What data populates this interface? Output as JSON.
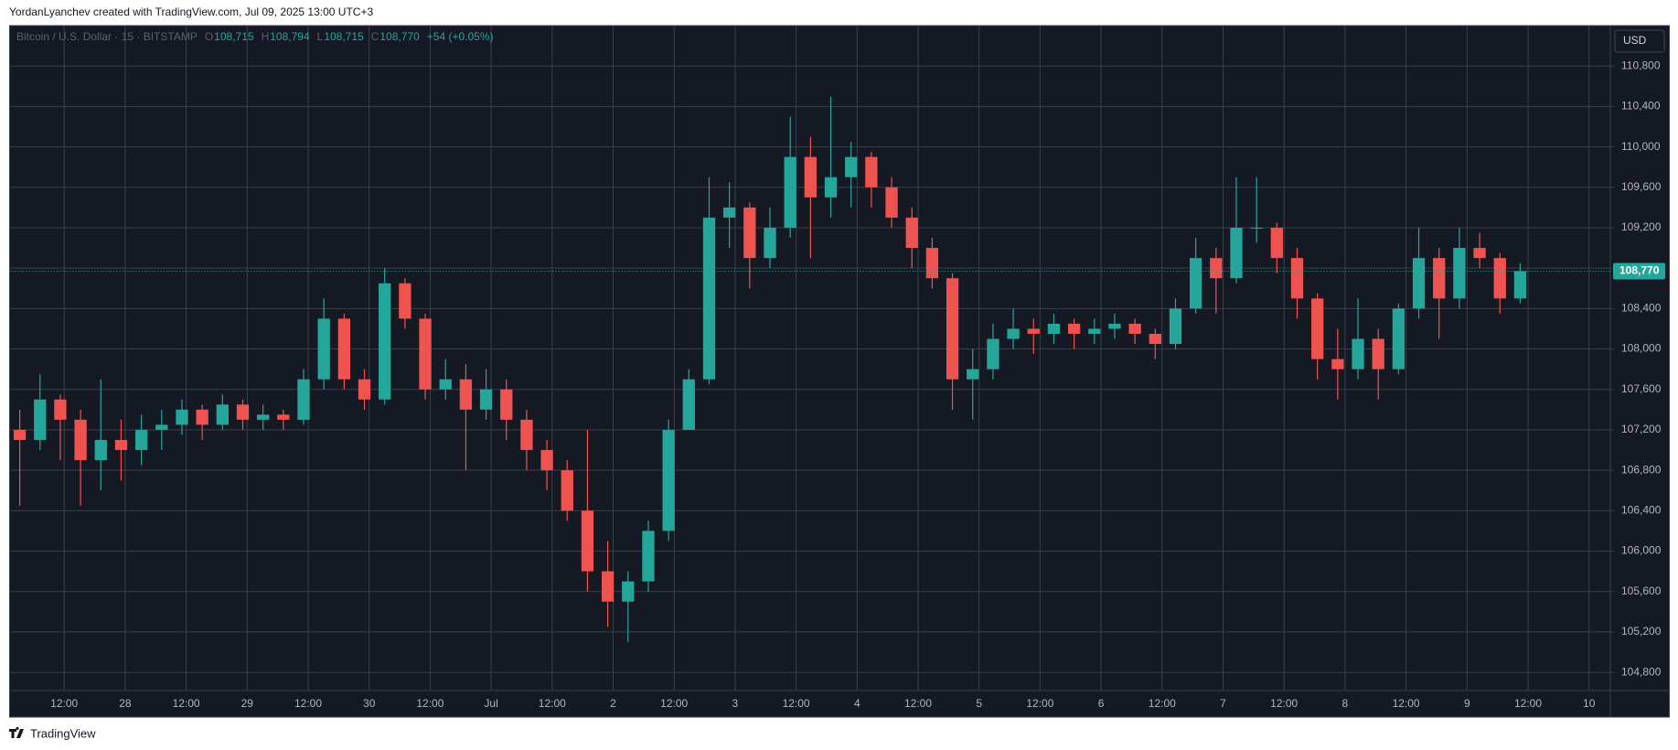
{
  "chart_data": {
    "type": "candlestick",
    "header": "YordanLyanchev created with TradingView.com, Jul 09, 2025 13:00 UTC+3",
    "legend": {
      "symbol": "Bitcoin / U.S. Dollar · 15 · BITSTAMP",
      "ohlc": [
        {
          "key": "O",
          "value": "108,715"
        },
        {
          "key": "H",
          "value": "108,794"
        },
        {
          "key": "L",
          "value": "108,715"
        },
        {
          "key": "C",
          "value": "108,770"
        }
      ],
      "change": "+54 (+0.05%)"
    },
    "currency": "USD",
    "footer": "TradingView",
    "up_color": "#26a69a",
    "down_color": "#ef5350",
    "ylim": [
      104620,
      111200
    ],
    "yticks": [
      {
        "value": 104800,
        "label": "104,800"
      },
      {
        "value": 105200,
        "label": "105,200"
      },
      {
        "value": 105600,
        "label": "105,600"
      },
      {
        "value": 106000,
        "label": "106,000"
      },
      {
        "value": 106400,
        "label": "106,400"
      },
      {
        "value": 106800,
        "label": "106,800"
      },
      {
        "value": 107200,
        "label": "107,200"
      },
      {
        "value": 107600,
        "label": "107,600"
      },
      {
        "value": 108000,
        "label": "108,000"
      },
      {
        "value": 108400,
        "label": "108,400"
      },
      {
        "value": 108800,
        "label": "108,800"
      },
      {
        "value": 109200,
        "label": "109,200"
      },
      {
        "value": 109600,
        "label": "109,600"
      },
      {
        "value": 110000,
        "label": "110,000"
      },
      {
        "value": 110400,
        "label": "110,400"
      },
      {
        "value": 110800,
        "label": "110,800"
      }
    ],
    "xticks": [
      "12:00",
      "28",
      "12:00",
      "29",
      "12:00",
      "30",
      "12:00",
      "Jul",
      "12:00",
      "2",
      "12:00",
      "3",
      "12:00",
      "4",
      "12:00",
      "5",
      "12:00",
      "6",
      "12:00",
      "7",
      "12:00",
      "8",
      "12:00",
      "9",
      "12:00",
      "10"
    ],
    "last_price": {
      "value": 108770,
      "label": "108,770"
    },
    "candles": [
      [
        107200,
        107400,
        106450,
        107100
      ],
      [
        107100,
        107750,
        107000,
        107500
      ],
      [
        107500,
        107550,
        106900,
        107300
      ],
      [
        107300,
        107400,
        106450,
        106900
      ],
      [
        106900,
        107700,
        106600,
        107100
      ],
      [
        107100,
        107300,
        106700,
        107000
      ],
      [
        107000,
        107350,
        106850,
        107200
      ],
      [
        107200,
        107400,
        107000,
        107250
      ],
      [
        107250,
        107500,
        107150,
        107400
      ],
      [
        107400,
        107450,
        107100,
        107250
      ],
      [
        107250,
        107550,
        107200,
        107450
      ],
      [
        107450,
        107500,
        107200,
        107300
      ],
      [
        107300,
        107450,
        107200,
        107350
      ],
      [
        107350,
        107400,
        107200,
        107300
      ],
      [
        107300,
        107800,
        107250,
        107700
      ],
      [
        107700,
        108500,
        107600,
        108300
      ],
      [
        108300,
        108350,
        107600,
        107700
      ],
      [
        107700,
        107800,
        107400,
        107500
      ],
      [
        107500,
        108800,
        107450,
        108650
      ],
      [
        108650,
        108700,
        108200,
        108300
      ],
      [
        108300,
        108350,
        107500,
        107600
      ],
      [
        107600,
        107900,
        107500,
        107700
      ],
      [
        107700,
        107850,
        106800,
        107400
      ],
      [
        107400,
        107800,
        107300,
        107600
      ],
      [
        107600,
        107700,
        107100,
        107300
      ],
      [
        107300,
        107400,
        106800,
        107000
      ],
      [
        107000,
        107100,
        106600,
        106800
      ],
      [
        106800,
        106900,
        106300,
        106400
      ],
      [
        106400,
        107200,
        105600,
        105800
      ],
      [
        105800,
        106100,
        105250,
        105500
      ],
      [
        105500,
        105800,
        105100,
        105700
      ],
      [
        105700,
        106300,
        105600,
        106200
      ],
      [
        106200,
        107300,
        106100,
        107200
      ],
      [
        107200,
        107800,
        107200,
        107700
      ],
      [
        107700,
        109700,
        107650,
        109300
      ],
      [
        109300,
        109650,
        109000,
        109400
      ],
      [
        109400,
        109450,
        108600,
        108900
      ],
      [
        108900,
        109400,
        108800,
        109200
      ],
      [
        109200,
        110300,
        109100,
        109900
      ],
      [
        109900,
        110100,
        108900,
        109500
      ],
      [
        109500,
        110500,
        109300,
        109700
      ],
      [
        109700,
        110050,
        109400,
        109900
      ],
      [
        109900,
        109950,
        109400,
        109600
      ],
      [
        109600,
        109700,
        109200,
        109300
      ],
      [
        109300,
        109400,
        108800,
        109000
      ],
      [
        109000,
        109100,
        108600,
        108700
      ],
      [
        108700,
        108750,
        107400,
        107700
      ],
      [
        107700,
        108000,
        107300,
        107800
      ],
      [
        107800,
        108250,
        107700,
        108100
      ],
      [
        108100,
        108400,
        108000,
        108200
      ],
      [
        108200,
        108300,
        107950,
        108150
      ],
      [
        108150,
        108350,
        108050,
        108250
      ],
      [
        108250,
        108300,
        108000,
        108150
      ],
      [
        108150,
        108300,
        108050,
        108200
      ],
      [
        108200,
        108350,
        108100,
        108250
      ],
      [
        108250,
        108300,
        108050,
        108150
      ],
      [
        108150,
        108200,
        107900,
        108050
      ],
      [
        108050,
        108500,
        108000,
        108400
      ],
      [
        108400,
        109100,
        108350,
        108900
      ],
      [
        108900,
        109000,
        108350,
        108700
      ],
      [
        108700,
        109700,
        108650,
        109200
      ],
      [
        109200,
        109700,
        109050,
        109200
      ],
      [
        109200,
        109250,
        108750,
        108900
      ],
      [
        108900,
        109000,
        108300,
        108500
      ],
      [
        108500,
        108550,
        107700,
        107900
      ],
      [
        107900,
        108200,
        107500,
        107800
      ],
      [
        107800,
        108500,
        107700,
        108100
      ],
      [
        108100,
        108200,
        107500,
        107800
      ],
      [
        107800,
        108450,
        107750,
        108400
      ],
      [
        108400,
        109200,
        108300,
        108900
      ],
      [
        108900,
        109000,
        108100,
        108500
      ],
      [
        108500,
        109200,
        108400,
        109000
      ],
      [
        109000,
        109150,
        108800,
        108900
      ],
      [
        108900,
        108950,
        108350,
        108500
      ],
      [
        108500,
        108850,
        108450,
        108770
      ]
    ]
  }
}
